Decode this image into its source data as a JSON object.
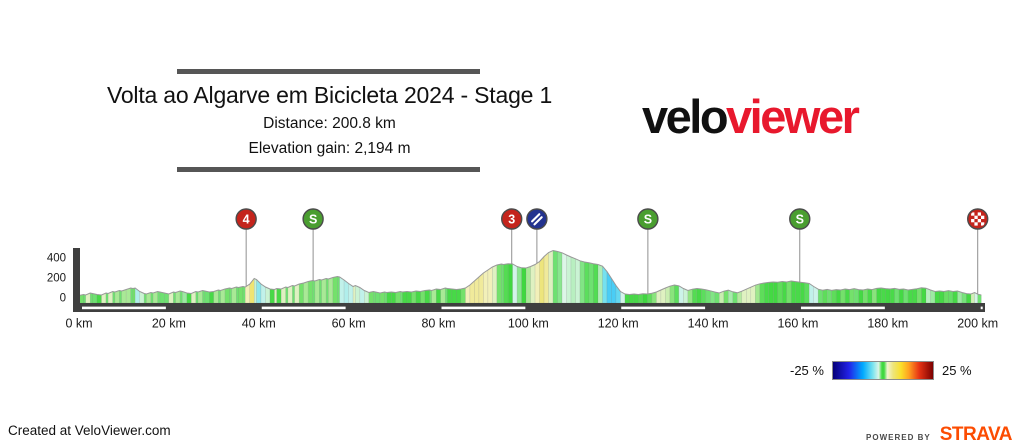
{
  "header": {
    "title": "Volta ao Algarve em Bicicleta 2024 - Stage 1",
    "distance": "Distance: 200.8 km",
    "elevation_gain": "Elevation gain: 2,194 m"
  },
  "logo": {
    "part1": "velo",
    "part2": "viewer",
    "part2_color": "#e8182d"
  },
  "legend": {
    "min_label": "-25 %",
    "max_label": "25 %"
  },
  "footer": {
    "credit": "Created at VeloViewer.com",
    "powered_by": "POWERED BY",
    "strava": "STRAVA",
    "strava_color": "#fc4c02"
  },
  "chart_data": {
    "type": "area",
    "title": "Volta ao Algarve em Bicicleta 2024 - Stage 1",
    "x_range_km": [
      0,
      200.8
    ],
    "y_range_m": [
      0,
      490
    ],
    "x_tick_km": [
      0,
      20,
      40,
      60,
      80,
      100,
      120,
      140,
      160,
      180,
      200
    ],
    "x_tick_suffix": " km",
    "y_ticks": [
      0,
      200,
      400
    ],
    "grid": false,
    "axis_color": "#3f3f3f",
    "outline_color": "#999999",
    "marker_colors": {
      "climb": "#c4241c",
      "sprint": "#4a9e30",
      "feed": "#23338f",
      "finish": "#c4241c",
      "ring": "#4b4b4b"
    },
    "markers": [
      {
        "km": 37.2,
        "type": "climb",
        "label": "4",
        "name": "cat4-climb-marker"
      },
      {
        "km": 52.1,
        "type": "sprint",
        "label": "S",
        "name": "sprint-1-marker"
      },
      {
        "km": 96.3,
        "type": "climb",
        "label": "3",
        "name": "cat3-climb-marker"
      },
      {
        "km": 101.9,
        "type": "feed",
        "label": "",
        "name": "feed-zone-marker"
      },
      {
        "km": 126.6,
        "type": "sprint",
        "label": "S",
        "name": "sprint-2-marker"
      },
      {
        "km": 160.4,
        "type": "sprint",
        "label": "S",
        "name": "sprint-3-marker"
      },
      {
        "km": 200.0,
        "type": "finish",
        "label": "",
        "name": "finish-marker"
      }
    ],
    "gradient_stops": [
      [
        -25,
        "#050078"
      ],
      [
        -17,
        "#2222e8"
      ],
      [
        -10,
        "#00aaff"
      ],
      [
        -5,
        "#7ce4ee"
      ],
      [
        -2.2,
        "#ddf6e8"
      ],
      [
        -0.6,
        "#49da49"
      ],
      [
        0,
        "#3bd63b"
      ],
      [
        0.6,
        "#49da49"
      ],
      [
        2.2,
        "#f4f4d2"
      ],
      [
        5,
        "#ede57c"
      ],
      [
        9,
        "#fadf2a"
      ],
      [
        13,
        "#ffa020"
      ],
      [
        18,
        "#e83414"
      ],
      [
        25,
        "#7c0000"
      ]
    ],
    "profile_km_elevation_m": [
      [
        0,
        15
      ],
      [
        1,
        25
      ],
      [
        1.5,
        20
      ],
      [
        2.5,
        40
      ],
      [
        3,
        35
      ],
      [
        4,
        25
      ],
      [
        5,
        20
      ],
      [
        6,
        40
      ],
      [
        6.5,
        35
      ],
      [
        7.5,
        55
      ],
      [
        8,
        50
      ],
      [
        9,
        65
      ],
      [
        9.5,
        60
      ],
      [
        10.5,
        75
      ],
      [
        11.5,
        90
      ],
      [
        12,
        85
      ],
      [
        12.5,
        90
      ],
      [
        13.5,
        55
      ],
      [
        14.5,
        35
      ],
      [
        15,
        30
      ],
      [
        16,
        45
      ],
      [
        16.5,
        40
      ],
      [
        17.5,
        55
      ],
      [
        18,
        50
      ],
      [
        19,
        40
      ],
      [
        20,
        30
      ],
      [
        21,
        50
      ],
      [
        21.5,
        45
      ],
      [
        22.5,
        60
      ],
      [
        23,
        55
      ],
      [
        24,
        40
      ],
      [
        25,
        35
      ],
      [
        26,
        55
      ],
      [
        26.5,
        50
      ],
      [
        27.5,
        65
      ],
      [
        28,
        60
      ],
      [
        29,
        50
      ],
      [
        30,
        55
      ],
      [
        31,
        70
      ],
      [
        31.5,
        65
      ],
      [
        32.5,
        80
      ],
      [
        33.5,
        90
      ],
      [
        34,
        85
      ],
      [
        35,
        100
      ],
      [
        35.5,
        95
      ],
      [
        36.5,
        105
      ],
      [
        37,
        100
      ],
      [
        38,
        130
      ],
      [
        39,
        185
      ],
      [
        39.5,
        175
      ],
      [
        40.5,
        130
      ],
      [
        41.5,
        100
      ],
      [
        42.5,
        80
      ],
      [
        43.5,
        75
      ],
      [
        44,
        85
      ],
      [
        45,
        80
      ],
      [
        46,
        100
      ],
      [
        46.5,
        95
      ],
      [
        47.5,
        115
      ],
      [
        48,
        110
      ],
      [
        49,
        130
      ],
      [
        50,
        140
      ],
      [
        51,
        155
      ],
      [
        52,
        165
      ],
      [
        52.5,
        160
      ],
      [
        53.5,
        175
      ],
      [
        54,
        170
      ],
      [
        55,
        185
      ],
      [
        55.5,
        180
      ],
      [
        56.5,
        195
      ],
      [
        57.5,
        205
      ],
      [
        58,
        200
      ],
      [
        59,
        170
      ],
      [
        60,
        135
      ],
      [
        61,
        105
      ],
      [
        61.5,
        115
      ],
      [
        62.5,
        95
      ],
      [
        63.5,
        65
      ],
      [
        64.5,
        45
      ],
      [
        65.5,
        55
      ],
      [
        66,
        50
      ],
      [
        67,
        40
      ],
      [
        68,
        50
      ],
      [
        68.5,
        45
      ],
      [
        69.5,
        50
      ],
      [
        70.5,
        45
      ],
      [
        71.5,
        55
      ],
      [
        72,
        50
      ],
      [
        73,
        55
      ],
      [
        74,
        50
      ],
      [
        75,
        60
      ],
      [
        76,
        55
      ],
      [
        77,
        65
      ],
      [
        78,
        70
      ],
      [
        78.5,
        65
      ],
      [
        79.5,
        80
      ],
      [
        80.5,
        75
      ],
      [
        81.5,
        90
      ],
      [
        82,
        85
      ],
      [
        83,
        80
      ],
      [
        84,
        75
      ],
      [
        85,
        80
      ],
      [
        86,
        90
      ],
      [
        87,
        120
      ],
      [
        88,
        160
      ],
      [
        89,
        200
      ],
      [
        90,
        240
      ],
      [
        91,
        270
      ],
      [
        92,
        300
      ],
      [
        93,
        320
      ],
      [
        94,
        330
      ],
      [
        94.5,
        325
      ],
      [
        95.5,
        332
      ],
      [
        96.5,
        330
      ],
      [
        97.5,
        305
      ],
      [
        98.5,
        292
      ],
      [
        99.5,
        290
      ],
      [
        100.5,
        305
      ],
      [
        101.5,
        325
      ],
      [
        102.5,
        355
      ],
      [
        103.5,
        405
      ],
      [
        104.5,
        445
      ],
      [
        105.5,
        465
      ],
      [
        106.5,
        455
      ],
      [
        107.5,
        442
      ],
      [
        108.5,
        420
      ],
      [
        109.5,
        400
      ],
      [
        110.5,
        382
      ],
      [
        111.5,
        362
      ],
      [
        112.5,
        350
      ],
      [
        113.5,
        342
      ],
      [
        114.5,
        332
      ],
      [
        115.5,
        325
      ],
      [
        116.5,
        308
      ],
      [
        117.5,
        255
      ],
      [
        118.5,
        185
      ],
      [
        119.5,
        115
      ],
      [
        120.5,
        55
      ],
      [
        121.5,
        30
      ],
      [
        122.5,
        25
      ],
      [
        123.5,
        30
      ],
      [
        124.5,
        25
      ],
      [
        125.5,
        32
      ],
      [
        126.5,
        30
      ],
      [
        127.5,
        38
      ],
      [
        128.5,
        50
      ],
      [
        129.5,
        70
      ],
      [
        130.5,
        90
      ],
      [
        131.5,
        108
      ],
      [
        132.5,
        120
      ],
      [
        133.5,
        112
      ],
      [
        134.5,
        85
      ],
      [
        135.5,
        65
      ],
      [
        136.5,
        78
      ],
      [
        137.5,
        85
      ],
      [
        138.5,
        80
      ],
      [
        139.5,
        72
      ],
      [
        140.5,
        62
      ],
      [
        141.5,
        50
      ],
      [
        142.5,
        40
      ],
      [
        143.5,
        58
      ],
      [
        144.5,
        68
      ],
      [
        145.5,
        52
      ],
      [
        146.5,
        42
      ],
      [
        147.5,
        58
      ],
      [
        148.5,
        78
      ],
      [
        149.5,
        98
      ],
      [
        150.5,
        118
      ],
      [
        151.5,
        132
      ],
      [
        152.5,
        140
      ],
      [
        153.5,
        146
      ],
      [
        154.5,
        150
      ],
      [
        155.5,
        147
      ],
      [
        156.5,
        155
      ],
      [
        157.5,
        150
      ],
      [
        158.5,
        160
      ],
      [
        159.5,
        154
      ],
      [
        160.5,
        148
      ],
      [
        161.5,
        143
      ],
      [
        162.5,
        135
      ],
      [
        163.5,
        105
      ],
      [
        164.5,
        78
      ],
      [
        165.5,
        68
      ],
      [
        166.5,
        76
      ],
      [
        167.5,
        66
      ],
      [
        168.5,
        74
      ],
      [
        169.5,
        70
      ],
      [
        170.5,
        80
      ],
      [
        171.5,
        74
      ],
      [
        172.5,
        84
      ],
      [
        173.5,
        74
      ],
      [
        174.5,
        70
      ],
      [
        175.5,
        80
      ],
      [
        176.5,
        74
      ],
      [
        177.5,
        86
      ],
      [
        178.5,
        90
      ],
      [
        179.5,
        84
      ],
      [
        180.5,
        80
      ],
      [
        181.5,
        86
      ],
      [
        182.5,
        76
      ],
      [
        183.5,
        80
      ],
      [
        184.5,
        70
      ],
      [
        185.5,
        76
      ],
      [
        186.5,
        82
      ],
      [
        187.5,
        92
      ],
      [
        188.5,
        88
      ],
      [
        189.5,
        70
      ],
      [
        190.5,
        55
      ],
      [
        191.5,
        60
      ],
      [
        192.5,
        55
      ],
      [
        193.5,
        64
      ],
      [
        194.5,
        55
      ],
      [
        195.5,
        60
      ],
      [
        196.5,
        45
      ],
      [
        197.5,
        34
      ],
      [
        198.5,
        30
      ],
      [
        199.3,
        45
      ],
      [
        200,
        28
      ],
      [
        200.8,
        20
      ]
    ]
  }
}
